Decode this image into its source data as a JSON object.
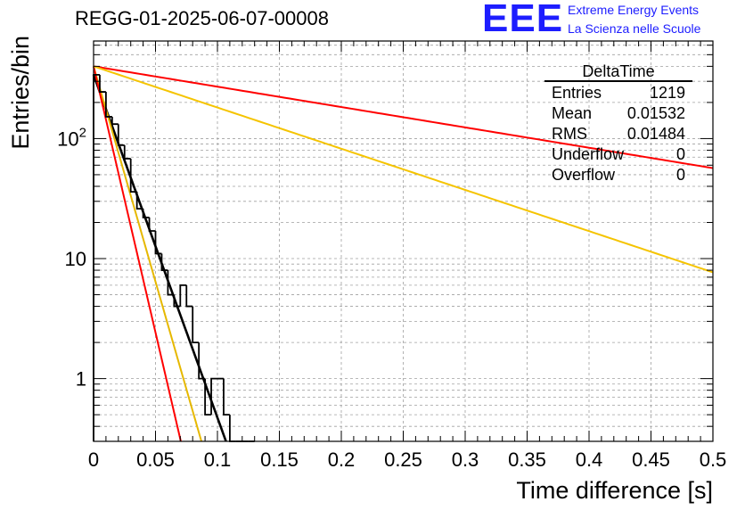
{
  "page": {
    "title": "REGG-01-2025-06-07-00008",
    "logo": {
      "mark": "EEE",
      "line1": "Extreme Energy Events",
      "line2": "La Scienza nelle Scuole"
    }
  },
  "chart_data": {
    "type": "histogram",
    "title": "REGG-01-2025-06-07-00008",
    "xlabel": "Time difference [s]",
    "ylabel": "Entries/bin",
    "xlim": [
      0,
      0.5
    ],
    "ylim": [
      0.3,
      650
    ],
    "yscale": "log",
    "grid": true,
    "x_ticks": [
      {
        "v": 0,
        "label": "0"
      },
      {
        "v": 0.05,
        "label": "0.05"
      },
      {
        "v": 0.1,
        "label": "0.1"
      },
      {
        "v": 0.15,
        "label": "0.15"
      },
      {
        "v": 0.2,
        "label": "0.2"
      },
      {
        "v": 0.25,
        "label": "0.25"
      },
      {
        "v": 0.3,
        "label": "0.3"
      },
      {
        "v": 0.35,
        "label": "0.35"
      },
      {
        "v": 0.4,
        "label": "0.4"
      },
      {
        "v": 0.45,
        "label": "0.45"
      },
      {
        "v": 0.5,
        "label": "0.5"
      }
    ],
    "y_ticks": [
      {
        "v": 1,
        "label": "1"
      },
      {
        "v": 10,
        "label": "10"
      },
      {
        "v": 100,
        "label": "10",
        "sup": "2"
      }
    ],
    "bin_width": 0.005,
    "histogram": {
      "name": "DeltaTime",
      "color": "#000000",
      "bin_edges_start": 0,
      "counts": [
        340,
        245,
        152,
        132,
        88,
        68,
        36,
        26,
        22,
        17,
        11,
        8,
        5,
        4,
        6,
        4,
        2,
        1,
        0.5,
        1,
        1,
        0.5,
        0.2,
        0.2,
        0.2,
        0.2
      ]
    },
    "fits": [
      {
        "name": "fit",
        "color": "#000000",
        "a": 340,
        "tau": 0.0152,
        "x_range": [
          0,
          0.11
        ]
      },
      {
        "name": "bound-upper",
        "color": "#e6b800",
        "a": 400,
        "tau": 0.0121,
        "x_range": [
          0,
          0.1
        ]
      },
      {
        "name": "bound-lower",
        "color": "#ff0000",
        "a": 400,
        "tau": 0.00979,
        "x_range": [
          0,
          0.08
        ]
      },
      {
        "name": "slow-upper",
        "color": "#ff0000",
        "a": 400,
        "tau": 0.256,
        "x_range": [
          0,
          0.5
        ]
      },
      {
        "name": "slow-lower",
        "color": "#f5c400",
        "a": 400,
        "tau": 0.1265,
        "x_range": [
          0,
          0.5
        ]
      }
    ],
    "stats": {
      "name": "DeltaTime",
      "rows": [
        {
          "label": "Entries",
          "value": "1219"
        },
        {
          "label": "Mean",
          "value": "0.01532"
        },
        {
          "label": "RMS",
          "value": "0.01484"
        },
        {
          "label": "Underflow",
          "value": "0"
        },
        {
          "label": "Overflow",
          "value": "0"
        }
      ]
    },
    "colors": {
      "axis": "#000000",
      "grid": "#a0a0a0",
      "hist": "#000000",
      "red": "#dd0000",
      "yellow": "#f0c000"
    }
  }
}
